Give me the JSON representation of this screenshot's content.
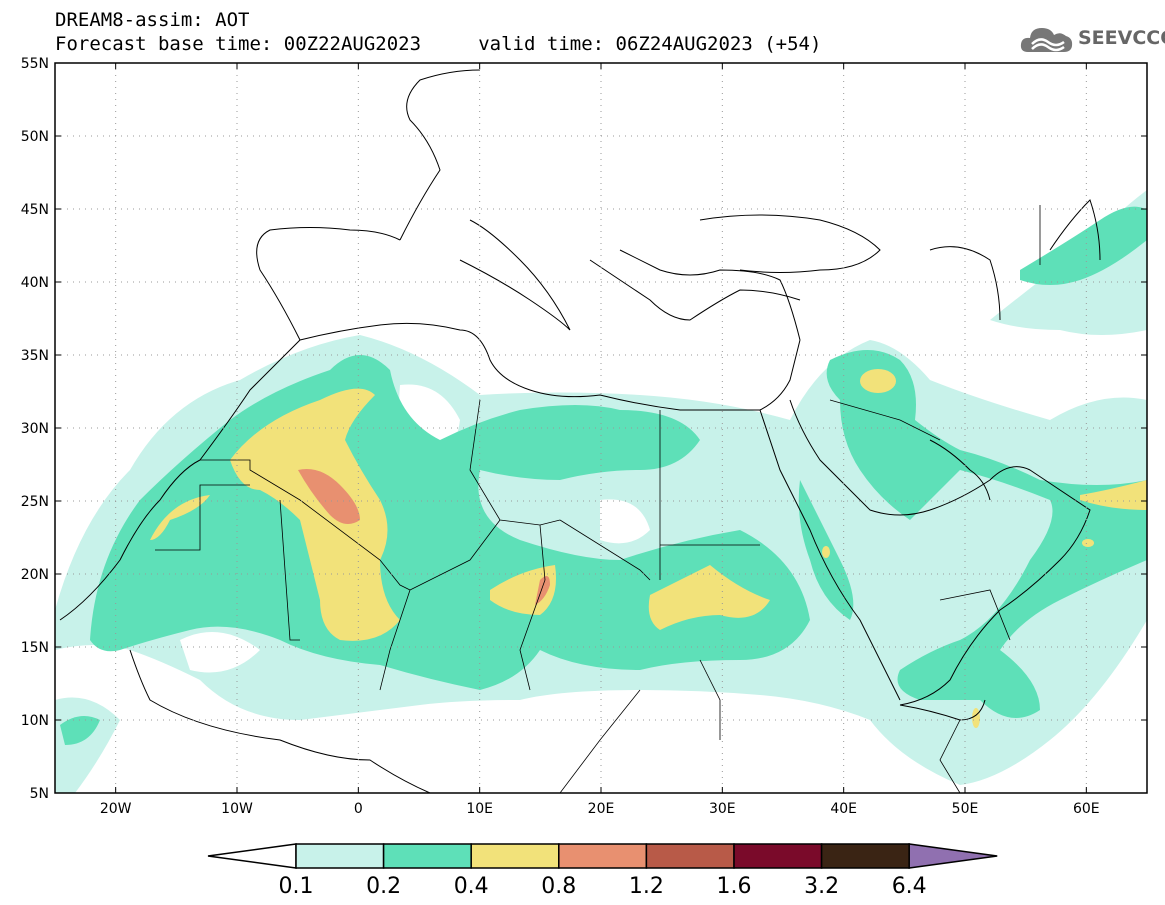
{
  "header": {
    "line1": "DREAM8-assim: AOT",
    "line2": "Forecast base time: 00Z22AUG2023     valid time: 06Z24AUG2023 (+54)"
  },
  "logo": {
    "text": "SEEVCCC",
    "icon": "cloud-icon"
  },
  "map": {
    "lon_range": [
      -25,
      65
    ],
    "lat_range": [
      5,
      55
    ],
    "lat_ticks": [
      "5N",
      "10N",
      "15N",
      "20N",
      "25N",
      "30N",
      "35N",
      "40N",
      "45N",
      "50N",
      "55N"
    ],
    "lon_ticks": [
      "20W",
      "10W",
      "0",
      "10E",
      "20E",
      "30E",
      "40E",
      "50E",
      "60E"
    ],
    "gridlines": "dotted"
  },
  "colorbar": {
    "labels": [
      "0.1",
      "0.2",
      "0.4",
      "0.8",
      "1.2",
      "1.6",
      "3.2",
      "6.4"
    ],
    "colors": [
      "#c8f2ea",
      "#5ee0b8",
      "#f2e27a",
      "#e89070",
      "#b85a48",
      "#7a0a2a",
      "#3a2414",
      "#9070b0"
    ],
    "under_color": "#ffffff"
  }
}
